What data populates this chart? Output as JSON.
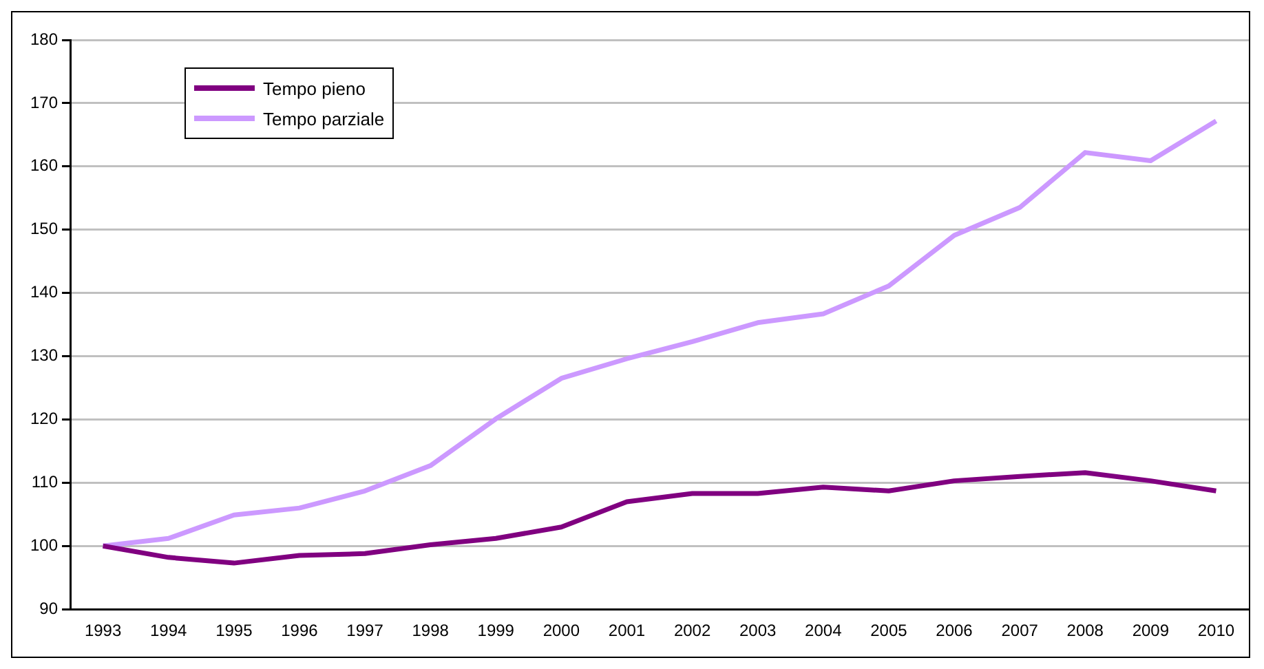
{
  "chart_data": {
    "type": "line",
    "categories": [
      "1993",
      "1994",
      "1995",
      "1996",
      "1997",
      "1998",
      "1999",
      "2000",
      "2001",
      "2002",
      "2003",
      "2004",
      "2005",
      "2006",
      "2007",
      "2008",
      "2009",
      "2010"
    ],
    "series": [
      {
        "name": "Tempo pieno",
        "color": "#800080",
        "values": [
          100,
          98.2,
          97.3,
          98.5,
          98.8,
          100.2,
          101.2,
          103,
          107,
          108.3,
          108.3,
          109.3,
          108.7,
          110.3,
          111,
          111.6,
          110.3,
          108.7
        ]
      },
      {
        "name": "Tempo parziale",
        "color": "#cc99ff",
        "values": [
          100,
          101.2,
          104.9,
          106,
          108.7,
          112.7,
          120.1,
          126.5,
          129.6,
          132.3,
          135.3,
          136.7,
          141.1,
          149.1,
          153.5,
          162.2,
          160.9,
          167.2
        ]
      }
    ],
    "ylim": [
      90,
      180
    ],
    "yticks": [
      90,
      100,
      110,
      120,
      130,
      140,
      150,
      160,
      170,
      180
    ],
    "grid": "y",
    "legend": "top left",
    "marker": "none",
    "line_style": "solid"
  }
}
